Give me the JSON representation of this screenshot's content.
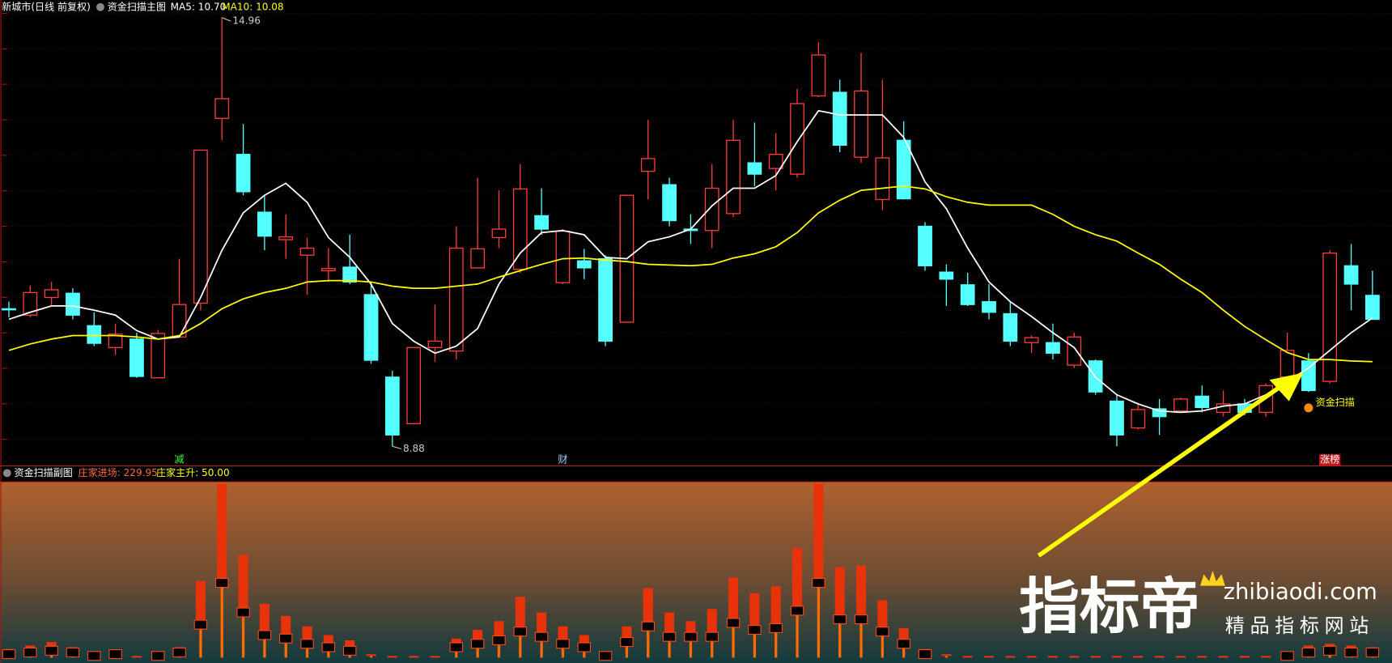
{
  "chart_data": [
    {
      "type": "candlestick",
      "title": "新城市(日线 前复权)",
      "subtitle": "资金扫描主图",
      "up_color": "#ff3c3c",
      "down_color": "#54ffff",
      "ylim": [
        8.6,
        15.21
      ],
      "open": [
        10.83,
        10.74,
        10.99,
        11.05,
        10.59,
        10.28,
        10.4,
        9.85,
        10.43,
        10.91,
        13.53,
        13.02,
        12.2,
        11.81,
        11.59,
        11.37,
        11.42,
        11.03,
        9.86,
        9.2,
        10.28,
        10.23,
        11.41,
        11.84,
        11.39,
        12.15,
        11.2,
        11.51,
        11.54,
        10.64,
        12.78,
        12.59,
        11.96,
        11.94,
        12.18,
        12.9,
        12.82,
        12.74,
        13.85,
        13.9,
        12.98,
        12.38,
        13.22,
        12.0,
        11.35,
        11.17,
        10.93,
        10.76,
        10.35,
        10.35,
        10.03,
        10.09,
        9.52,
        9.14,
        9.41,
        9.38,
        9.59,
        9.36,
        9.48,
        9.36,
        9.86,
        10.09,
        9.8,
        11.44,
        11.02
      ],
      "high": [
        10.93,
        11.16,
        11.21,
        11.12,
        10.78,
        10.62,
        10.49,
        10.53,
        11.54,
        13.08,
        14.96,
        13.45,
        12.44,
        12.17,
        11.84,
        11.69,
        11.88,
        11.21,
        9.95,
        10.28,
        10.89,
        12.0,
        12.69,
        12.51,
        12.88,
        12.54,
        11.96,
        11.68,
        11.59,
        12.44,
        13.51,
        12.69,
        12.17,
        12.88,
        13.51,
        13.47,
        13.32,
        13.95,
        14.61,
        14.08,
        14.46,
        14.08,
        13.49,
        12.06,
        11.46,
        11.34,
        11.18,
        10.93,
        10.45,
        10.62,
        10.49,
        10.11,
        9.61,
        9.48,
        9.55,
        9.57,
        9.74,
        9.67,
        9.55,
        9.77,
        10.49,
        10.2,
        11.66,
        11.75,
        11.37
      ],
      "low": [
        10.71,
        10.71,
        10.87,
        10.68,
        10.3,
        10.18,
        9.85,
        9.85,
        10.43,
        10.81,
        13.22,
        12.44,
        11.66,
        11.54,
        11.03,
        11.21,
        11.18,
        10.05,
        8.88,
        9.2,
        10.08,
        10.11,
        11.4,
        11.69,
        11.34,
        11.88,
        11.18,
        11.25,
        10.3,
        10.64,
        12.38,
        12.0,
        11.75,
        11.69,
        12.13,
        12.57,
        12.51,
        12.69,
        13.83,
        13.05,
        12.9,
        12.23,
        12.38,
        11.37,
        10.87,
        10.87,
        10.68,
        10.3,
        10.2,
        10.11,
        9.99,
        9.61,
        8.88,
        9.12,
        9.04,
        9.36,
        9.36,
        9.3,
        9.32,
        9.3,
        9.67,
        9.65,
        9.77,
        10.81,
        10.68
      ],
      "close": [
        10.83,
        11.06,
        11.1,
        10.74,
        10.34,
        10.47,
        9.87,
        10.48,
        10.89,
        13.08,
        13.81,
        12.49,
        11.86,
        11.85,
        11.69,
        11.4,
        11.21,
        10.1,
        9.04,
        10.28,
        10.37,
        11.69,
        11.68,
        11.96,
        12.53,
        11.96,
        11.93,
        11.41,
        10.37,
        12.44,
        12.96,
        12.08,
        11.94,
        12.54,
        13.22,
        12.74,
        13.02,
        13.74,
        14.43,
        13.15,
        13.92,
        12.97,
        12.39,
        11.44,
        11.25,
        10.89,
        10.78,
        10.37,
        10.42,
        10.2,
        10.43,
        9.65,
        9.04,
        9.4,
        9.3,
        9.55,
        9.43,
        9.48,
        9.36,
        9.74,
        10.24,
        9.67,
        11.62,
        11.18,
        10.68
      ],
      "lines": [
        {
          "label": "MA5: 10.70",
          "color": "#ffffff",
          "values": [
            10.68,
            10.78,
            10.87,
            10.87,
            10.81,
            10.74,
            10.52,
            10.4,
            10.43,
            10.99,
            11.66,
            12.19,
            12.44,
            12.61,
            12.34,
            11.84,
            11.56,
            11.18,
            10.62,
            10.37,
            10.2,
            10.3,
            10.55,
            11.18,
            11.62,
            11.91,
            11.94,
            11.88,
            11.56,
            11.54,
            11.78,
            11.85,
            11.96,
            12.29,
            12.54,
            12.54,
            12.72,
            13.2,
            13.64,
            13.58,
            13.58,
            13.58,
            13.26,
            12.63,
            12.25,
            11.69,
            11.21,
            10.93,
            10.72,
            10.49,
            10.28,
            9.86,
            9.61,
            9.48,
            9.38,
            9.36,
            9.38,
            9.45,
            9.48,
            9.61,
            9.8,
            9.99,
            10.24,
            10.49,
            10.7
          ]
        },
        {
          "label": "MA10: 10.08",
          "color": "#ffff00",
          "values": [
            10.24,
            10.33,
            10.4,
            10.45,
            10.45,
            10.45,
            10.43,
            10.4,
            10.45,
            10.62,
            10.83,
            10.97,
            11.06,
            11.12,
            11.21,
            11.23,
            11.23,
            11.21,
            11.15,
            11.12,
            11.12,
            11.15,
            11.18,
            11.28,
            11.37,
            11.46,
            11.54,
            11.55,
            11.52,
            11.5,
            11.46,
            11.45,
            11.44,
            11.46,
            11.55,
            11.61,
            11.71,
            11.91,
            12.19,
            12.37,
            12.51,
            12.54,
            12.57,
            12.53,
            12.42,
            12.34,
            12.3,
            12.3,
            12.3,
            12.17,
            12.0,
            11.88,
            11.79,
            11.62,
            11.46,
            11.25,
            11.06,
            10.81,
            10.58,
            10.39,
            10.21,
            10.11,
            10.11,
            10.09,
            10.08
          ]
        }
      ],
      "high_label": "14.96",
      "low_label": "8.88",
      "signals": [
        {
          "label": "减",
          "at": 8,
          "place": "bottom",
          "color": "#3cff3c"
        },
        {
          "label": "财",
          "at": 26,
          "place": "bottom",
          "color": "#9fd0ff"
        },
        {
          "label": "涨榜",
          "at": 62,
          "place": "bottom",
          "color": "#ffffff",
          "background": "#c0181e"
        },
        {
          "label": "资金扫描",
          "at": 61,
          "place": "low",
          "color": "#ffff00"
        }
      ]
    },
    {
      "type": "bar",
      "title": "资金扫描副图",
      "ylim": [
        0,
        100
      ],
      "series": [
        {
          "label": "庄家进场: 229.95",
          "color": "#e8320a",
          "values": [
            5,
            7,
            9,
            6,
            3,
            4,
            1,
            3,
            6,
            44,
            100,
            59,
            31,
            24,
            18,
            13,
            10,
            2,
            1,
            1,
            1,
            11,
            16,
            21,
            35,
            26,
            18,
            13,
            3,
            18,
            40,
            26,
            21,
            28,
            46,
            37,
            41,
            63,
            100,
            52,
            53,
            33,
            17,
            5,
            2,
            1,
            1,
            1,
            1,
            1,
            1,
            1,
            1,
            1,
            1,
            1,
            1,
            1,
            1,
            1,
            3,
            7,
            8,
            7,
            6
          ]
        },
        {
          "label": "庄家主升: 50.00",
          "color": "#ffff00",
          "values": [
            2,
            3,
            4,
            3,
            1,
            2,
            0,
            1,
            3,
            19,
            43,
            26,
            13,
            11,
            8,
            6,
            4,
            1,
            0,
            0,
            0,
            6,
            8,
            10,
            15,
            12,
            8,
            6,
            1,
            9,
            18,
            12,
            12,
            12,
            20,
            16,
            17,
            27,
            43,
            22,
            22,
            15,
            8,
            2,
            1,
            0,
            0,
            0,
            0,
            0,
            0,
            0,
            0,
            0,
            0,
            0,
            0,
            0,
            0,
            0,
            1,
            3,
            4,
            3,
            3
          ]
        }
      ]
    }
  ],
  "watermark": {
    "brand": "指标帝",
    "site": "zhibiaodi.com",
    "slogan": "精品指标网站"
  }
}
